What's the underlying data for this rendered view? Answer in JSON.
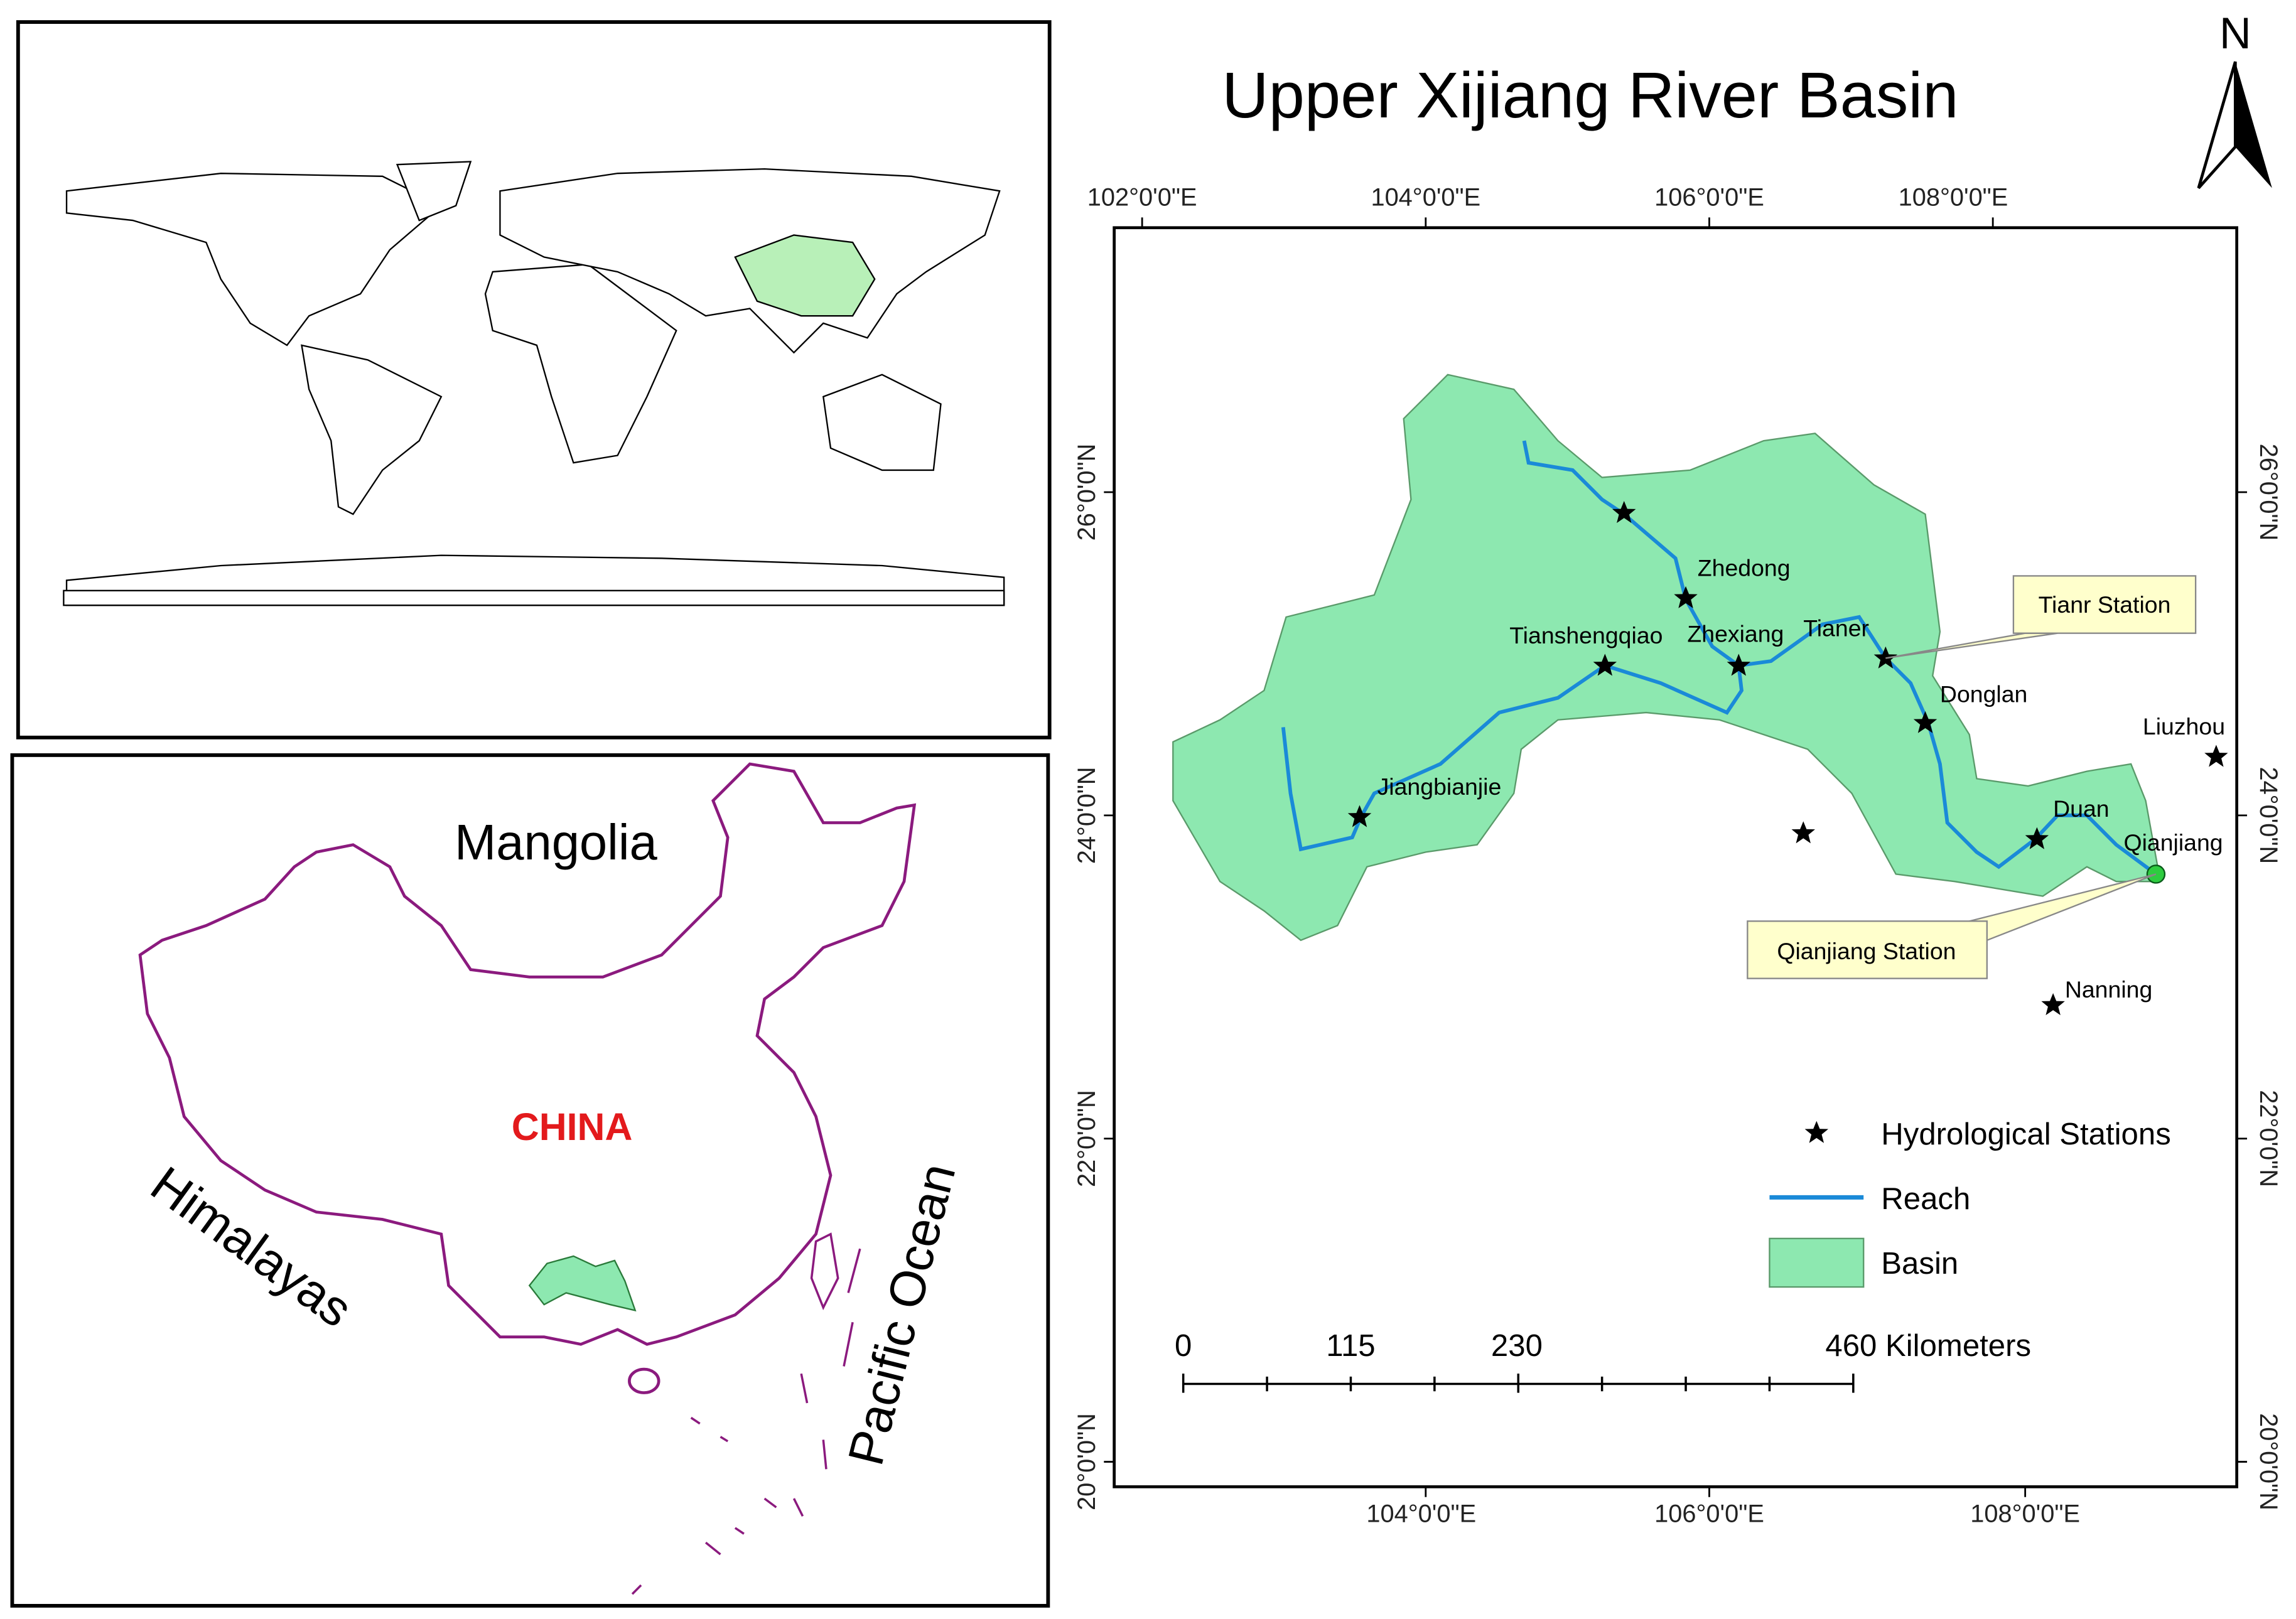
{
  "title": "Upper Xijiang River Basin",
  "north_arrow": "N",
  "map_grid": {
    "top_labels": [
      "102°0'0\"E",
      "104°0'0\"E",
      "106°0'0\"E",
      "108°0'0\"E"
    ],
    "bottom_labels": [
      "104°0'0\"E",
      "106°0'0\"E",
      "108°0'0\"E"
    ],
    "left_labels": [
      "26°0'0\"N",
      "24°0'0\"N",
      "22°0'0\"N",
      "20°0'0\"N"
    ],
    "right_labels": [
      "26°0'0\"N",
      "24°0'0\"N",
      "22°0'0\"N",
      "20°0'0\"N"
    ]
  },
  "stations": [
    "Zhedong",
    "Tianshengqiao",
    "Zhexiang",
    "Tianer",
    "Donglan",
    "Liuzhou",
    "Jiangbianjie",
    "Duan",
    "Qianjiang",
    "Nanning"
  ],
  "callouts": [
    "Tianr Station",
    "Qianjiang Station"
  ],
  "legend": [
    "Hydrological Stations",
    "Reach",
    "Basin"
  ],
  "scale_bar": [
    "0",
    "115",
    "230",
    "460 Kilometers"
  ],
  "inset": {
    "labels": [
      "Mangolia",
      "CHINA",
      "Himalayas",
      "Pacific Ocean"
    ]
  }
}
